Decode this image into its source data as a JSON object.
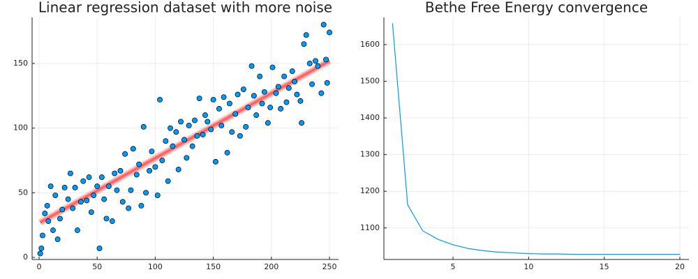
{
  "chart_data": [
    {
      "type": "scatter",
      "title": "Linear regression dataset with more noise",
      "x": [
        1,
        2,
        3,
        5,
        7,
        8,
        10,
        12,
        14,
        16,
        18,
        20,
        22,
        25,
        27,
        29,
        31,
        33,
        36,
        38,
        41,
        43,
        45,
        47,
        50,
        52,
        54,
        56,
        58,
        60,
        63,
        65,
        67,
        70,
        72,
        74,
        77,
        79,
        81,
        84,
        86,
        88,
        90,
        92,
        95,
        97,
        100,
        102,
        104,
        106,
        109,
        111,
        113,
        115,
        118,
        120,
        122,
        125,
        127,
        129,
        132,
        134,
        136,
        138,
        141,
        143,
        145,
        148,
        150,
        152,
        155,
        157,
        159,
        162,
        164,
        166,
        169,
        171,
        173,
        176,
        178,
        180,
        183,
        185,
        187,
        190,
        192,
        194,
        197,
        199,
        201,
        204,
        206,
        208,
        211,
        213,
        215,
        218,
        220,
        222,
        225,
        226,
        228,
        230,
        233,
        235,
        238,
        240,
        243,
        245,
        247,
        248,
        250
      ],
      "values": [
        3,
        7,
        17,
        34,
        40,
        28,
        55,
        21,
        48,
        14,
        30,
        37,
        54,
        45,
        65,
        38,
        54,
        21,
        43,
        59,
        44,
        62,
        35,
        48,
        55,
        7,
        62,
        45,
        30,
        55,
        28,
        65,
        52,
        67,
        43,
        80,
        38,
        52,
        84,
        64,
        72,
        40,
        101,
        50,
        67,
        82,
        70,
        48,
        122,
        75,
        90,
        59,
        100,
        86,
        97,
        68,
        105,
        91,
        77,
        102,
        86,
        106,
        94,
        123,
        95,
        110,
        105,
        99,
        122,
        74,
        115,
        102,
        124,
        81,
        119,
        97,
        111,
        126,
        94,
        130,
        101,
        116,
        148,
        125,
        110,
        140,
        119,
        128,
        104,
        116,
        147,
        127,
        132,
        115,
        140,
        120,
        131,
        144,
        136,
        126,
        121,
        104,
        165,
        172,
        150,
        134,
        152,
        148,
        127,
        180,
        153,
        135,
        174
      ],
      "color": "#009afa",
      "fit": {
        "x": [
          1,
          250
        ],
        "values": [
          27,
          152
        ],
        "color": "#ff3b3b"
      },
      "xlim": [
        -6,
        257.8
      ],
      "ylim": [
        -1.6,
        185.6
      ],
      "xticks": [
        0,
        50,
        100,
        150,
        200,
        250
      ],
      "yticks": [
        0,
        50,
        100,
        150
      ],
      "grid": true
    },
    {
      "type": "line",
      "title": "Bethe Free Energy convergence",
      "x": [
        1,
        2,
        3,
        4,
        5,
        6,
        7,
        8,
        9,
        10,
        11,
        12,
        13,
        14,
        15,
        16,
        17,
        18,
        19,
        20
      ],
      "values": [
        1658,
        1163,
        1092,
        1069,
        1054,
        1044,
        1038,
        1034,
        1032,
        1030,
        1029,
        1029,
        1028,
        1028,
        1028,
        1028,
        1028,
        1028,
        1028,
        1028
      ],
      "color": "#009afa",
      "xlim": [
        0.43,
        20.6
      ],
      "ylim": [
        1014,
        1674
      ],
      "xticks": [
        5,
        10,
        15,
        20
      ],
      "yticks": [
        1100,
        1200,
        1300,
        1400,
        1500,
        1600
      ],
      "grid": true
    }
  ]
}
